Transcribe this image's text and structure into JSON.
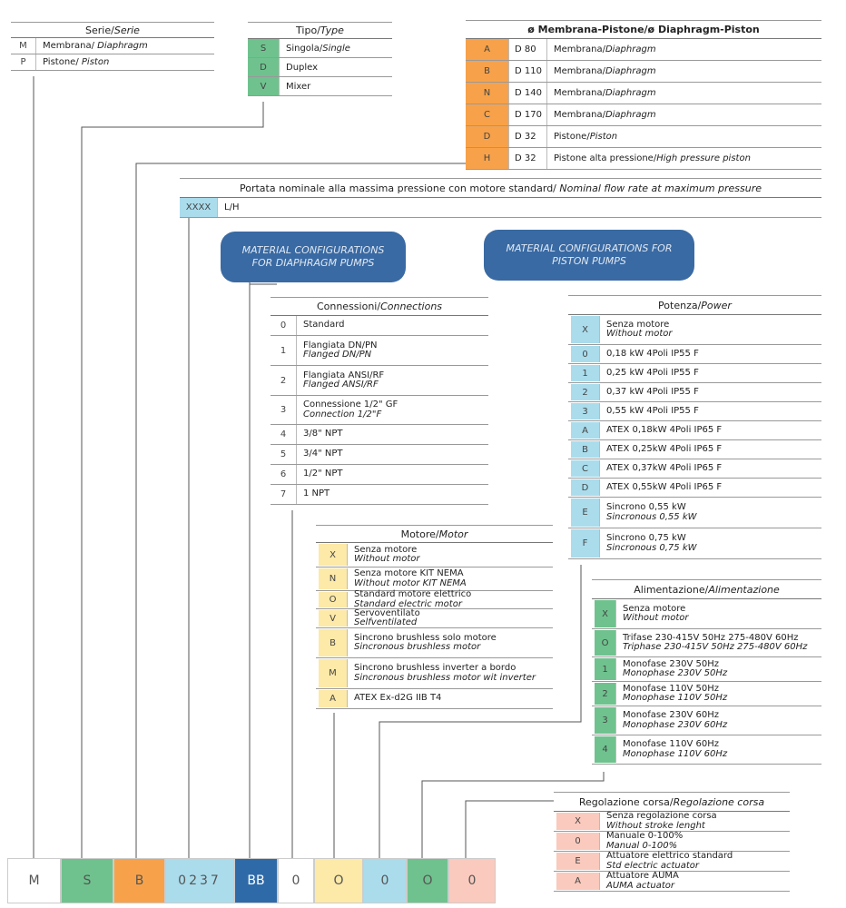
{
  "serie": {
    "title": [
      "Serie/",
      "Serie"
    ],
    "rows": [
      {
        "code": "M",
        "it": "Membrana/ ",
        "en": "Diaphragm"
      },
      {
        "code": "P",
        "it": "Pistone/ ",
        "en": "Piston"
      }
    ]
  },
  "tipo": {
    "title": [
      "Tipo/",
      "Type"
    ],
    "rows": [
      {
        "code": "S",
        "it": "Singola/",
        "en": "Single"
      },
      {
        "code": "D",
        "it": "Duplex"
      },
      {
        "code": "V",
        "it": "Mixer"
      }
    ]
  },
  "diaphragm_piston": {
    "title": [
      "ø Membrana-Pistone/ø Diaphragm-Piston"
    ],
    "rows": [
      {
        "code": "A",
        "size": "D 80",
        "it": "Membrana/",
        "en": "Diaphragm"
      },
      {
        "code": "B",
        "size": "D 110",
        "it": "Membrana/",
        "en": "Diaphragm"
      },
      {
        "code": "N",
        "size": "D 140",
        "it": "Membrana/",
        "en": "Diaphragm"
      },
      {
        "code": "C",
        "size": "D 170",
        "it": "Membrana/",
        "en": "Diaphragm"
      },
      {
        "code": "D",
        "size": "D 32",
        "it": "Pistone/",
        "en": "Piston"
      },
      {
        "code": "H",
        "size": "D 32",
        "it": "Pistone alta pressione/",
        "en": "High pressure piston"
      }
    ]
  },
  "portata": {
    "title": [
      "Portata nominale alla massima pressione con motore standard/ ",
      "Nominal flow rate at maximum pressure"
    ],
    "rows": [
      {
        "code": "XXXX",
        "it": "L/H"
      }
    ]
  },
  "buttons": [
    "MATERIAL CONFIGURATIONS FOR DIAPHRAGM PUMPS",
    "MATERIAL CONFIGURATIONS FOR PISTON PUMPS"
  ],
  "connessioni": {
    "title": [
      "Connessioni/",
      "Connections"
    ],
    "rows": [
      {
        "code": "0",
        "it": "Standard"
      },
      {
        "code": "1",
        "it": "Flangiata DN/PN",
        "en": "Flanged DN/PN"
      },
      {
        "code": "2",
        "it": "Flangiata ANSI/RF",
        "en": "Flanged ANSI/RF"
      },
      {
        "code": "3",
        "it": "Connessione 1/2\" GF",
        "en": "Connection 1/2\"F"
      },
      {
        "code": "4",
        "it": "3/8\" NPT"
      },
      {
        "code": "5",
        "it": "3/4\" NPT"
      },
      {
        "code": "6",
        "it": "1/2\" NPT"
      },
      {
        "code": "7",
        "it": "1 NPT"
      }
    ]
  },
  "potenza": {
    "title": [
      "Potenza/",
      "Power"
    ],
    "rows": [
      {
        "code": "X",
        "it": "Senza motore",
        "en": "Without motor"
      },
      {
        "code": "0",
        "it": "0,18 kW 4Poli IP55 F"
      },
      {
        "code": "1",
        "it": "0,25 kW 4Poli IP55 F"
      },
      {
        "code": "2",
        "it": "0,37 kW 4Poli IP55 F"
      },
      {
        "code": "3",
        "it": "0,55 kW 4Poli IP55 F"
      },
      {
        "code": "A",
        "it": "ATEX 0,18kW 4Poli IP65 F"
      },
      {
        "code": "B",
        "it": "ATEX 0,25kW 4Poli IP65 F"
      },
      {
        "code": "C",
        "it": "ATEX 0,37kW 4Poli IP65 F"
      },
      {
        "code": "D",
        "it": "ATEX 0,55kW 4Poli IP65 F"
      },
      {
        "code": "E",
        "it": "Sincrono 0,55 kW",
        "en": "Sincronous 0,55 kW"
      },
      {
        "code": "F",
        "it": "Sincrono 0,75 kW",
        "en": "Sincronous 0,75 kW"
      }
    ]
  },
  "motore": {
    "title": [
      "Motore/",
      "Motor"
    ],
    "rows": [
      {
        "code": "X",
        "it": "Senza motore",
        "en": "Without motor"
      },
      {
        "code": "N",
        "it": "Senza motore KIT NEMA",
        "en": "Without motor KIT NEMA"
      },
      {
        "code": "O",
        "it": "Standard motore elettrico",
        "en": "Standard electric motor"
      },
      {
        "code": "V",
        "it": "Servoventilato",
        "en": "Selfventilated"
      },
      {
        "code": "B",
        "it": "Sincrono brushless solo motore",
        "en": "Sincronous brushless motor"
      },
      {
        "code": "M",
        "it": "Sincrono brushless inverter a bordo",
        "en": "Sincronous brushless motor wit inverter"
      },
      {
        "code": "A",
        "it": "ATEX Ex-d2G IIB T4"
      }
    ]
  },
  "alimentazione": {
    "title": [
      "Alimentazione/",
      "Alimentazione"
    ],
    "rows": [
      {
        "code": "X",
        "it": "Senza motore",
        "en": "Without motor"
      },
      {
        "code": "O",
        "it": "Trifase 230-415V 50Hz 275-480V 60Hz",
        "en": "Triphase 230-415V 50Hz 275-480V 60Hz"
      },
      {
        "code": "1",
        "it": "Monofase 230V 50Hz",
        "en": "Monophase 230V 50Hz"
      },
      {
        "code": "2",
        "it": "Monofase 110V 50Hz",
        "en": "Monophase 110V 50Hz"
      },
      {
        "code": "3",
        "it": "Monofase 230V 60Hz",
        "en": "Monophase 230V 60Hz"
      },
      {
        "code": "4",
        "it": "Monofase 110V 60Hz",
        "en": "Monophase 110V 60Hz"
      }
    ]
  },
  "regolazione": {
    "title": [
      "Regolazione corsa/",
      "Regolazione corsa"
    ],
    "rows": [
      {
        "code": "X",
        "it": "Senza regolazione corsa",
        "en": "Without stroke lenght"
      },
      {
        "code": "0",
        "it": "Manuale 0-100%",
        "en": "Manual 0-100%"
      },
      {
        "code": "E",
        "it": "Attuatore elettrico standard",
        "en": "Std electric actuator"
      },
      {
        "code": "A",
        "it": "Attuatore AUMA",
        "en": "AUMA actuator"
      }
    ]
  },
  "code": [
    "M",
    "S",
    "B",
    "0237",
    "BB",
    "0",
    "O",
    "0",
    "O",
    "0"
  ]
}
